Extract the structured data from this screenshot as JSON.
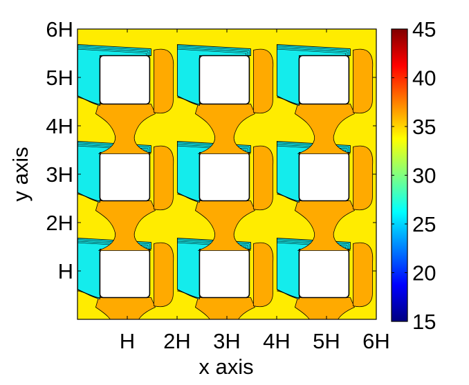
{
  "chart_data": {
    "type": "heatmap",
    "title": "",
    "xlabel": "x axis",
    "ylabel": "y axis",
    "xlim": [
      0,
      6
    ],
    "ylim": [
      0,
      6
    ],
    "x_ticks": [
      {
        "value": 1,
        "label": "H"
      },
      {
        "value": 2,
        "label": "2H"
      },
      {
        "value": 3,
        "label": "3H"
      },
      {
        "value": 4,
        "label": "4H"
      },
      {
        "value": 5,
        "label": "5H"
      },
      {
        "value": 6,
        "label": "6H"
      }
    ],
    "y_ticks": [
      {
        "value": 1,
        "label": "H"
      },
      {
        "value": 2,
        "label": "2H"
      },
      {
        "value": 3,
        "label": "3H"
      },
      {
        "value": 4,
        "label": "4H"
      },
      {
        "value": 5,
        "label": "5H"
      },
      {
        "value": 6,
        "label": "6H"
      }
    ],
    "colorbar": {
      "range": [
        15,
        45
      ],
      "ticks": [
        15,
        20,
        25,
        30,
        35,
        40,
        45
      ],
      "colormap": "jet",
      "placement": "right"
    },
    "fill_levels": {
      "background": 34,
      "warm": 36.5,
      "cool": 27
    },
    "obstacles": {
      "grid": [
        3,
        3
      ],
      "pitch": [
        2,
        2
      ],
      "first_center": [
        0.95,
        0.95
      ],
      "size": [
        1.0,
        1.0
      ]
    },
    "colors": {
      "background": "#ffec00",
      "warm": "#ffaa00",
      "cool": "#14ecec",
      "obstacle": "#ffffff",
      "contour": "#000000"
    },
    "grid": false
  }
}
